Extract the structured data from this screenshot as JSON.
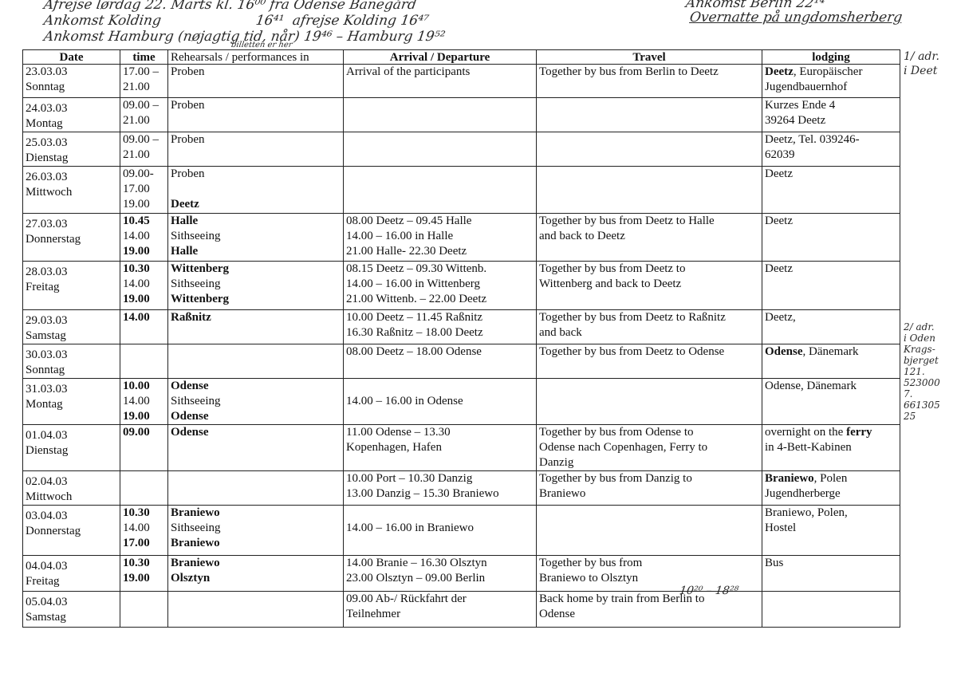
{
  "handwritten_notes": {
    "top_line1": "Afrejse lørdag 22. Marts  kl. 16⁰⁰ fra Odense Banegård",
    "top_line2": "Ankomst Kolding                      16⁴¹  afrejse Kolding 16⁴⁷",
    "top_line3": "Ankomst Hamburg (nøjagtig tid, når) 19⁴⁶  –  Hamburg 19⁵²",
    "top_line3_sub": "billetten er her",
    "top_right1": "Ankomst Berlin 22¹⁴",
    "top_right2": "Overnatte på ungdomsherberg",
    "margin1": "1/ adr.\ni Deet",
    "margin2": "2/ adr.\ni Oden\nKrags-\nbjerget\n121.\n523000\n7.\n661305\n25",
    "travel_time": "10²⁰ – 18²⁸"
  },
  "table": {
    "headers": [
      "Date",
      "time",
      "Rehearsals / performances in",
      "Arrival / Departure",
      "Travel",
      "lodging"
    ],
    "rows": [
      {
        "date": [
          "23.03.03",
          "Sonntag"
        ],
        "time": [
          [
            "17.00 –"
          ],
          [
            "21.00"
          ]
        ],
        "rehearsal": [
          [
            "Proben"
          ]
        ],
        "arrival": [
          [
            "Arrival of the participants"
          ]
        ],
        "travel": [
          [
            "Together by bus from Berlin to Deetz"
          ]
        ],
        "lodging": [
          [
            "Deetz",
            ", Europäischer"
          ],
          [
            "",
            "Jugendbauernhof"
          ]
        ]
      },
      {
        "date": [
          "24.03.03",
          "Montag"
        ],
        "time": [
          [
            "09.00 –"
          ],
          [
            "21.00"
          ]
        ],
        "rehearsal": [
          [
            "Proben"
          ]
        ],
        "arrival": [],
        "travel": [],
        "lodging": [
          [
            "",
            "Kurzes Ende 4"
          ],
          [
            "",
            "39264  Deetz"
          ]
        ]
      },
      {
        "date": [
          "25.03.03",
          "Dienstag"
        ],
        "time": [
          [
            "09.00 –"
          ],
          [
            "21.00"
          ]
        ],
        "rehearsal": [
          [
            "Proben"
          ]
        ],
        "arrival": [],
        "travel": [],
        "lodging": [
          [
            "",
            "Deetz, Tel. 039246-"
          ],
          [
            "",
            "62039"
          ]
        ]
      },
      {
        "date": [
          "26.03.03",
          "Mittwoch"
        ],
        "time": [
          [
            "09.00-"
          ],
          [
            "17.00"
          ],
          [
            "19.00"
          ]
        ],
        "rehearsal": [
          [
            "Proben"
          ],
          [
            ""
          ],
          [
            "Deetz",
            true
          ]
        ],
        "arrival": [],
        "travel": [],
        "lodging": [
          [
            "",
            "Deetz"
          ]
        ]
      },
      {
        "date": [
          "27.03.03",
          "Donnerstag"
        ],
        "time": [
          [
            "10.45",
            true
          ],
          [
            "14.00"
          ],
          [
            "19.00",
            true
          ]
        ],
        "rehearsal": [
          [
            "Halle",
            true
          ],
          [
            "Sithseeing"
          ],
          [
            "Halle",
            true
          ]
        ],
        "arrival": [
          [
            "08.00 Deetz – 09.45 Halle"
          ],
          [
            "14.00 – 16.00 in Halle"
          ],
          [
            "21.00 Halle- 22.30 Deetz"
          ]
        ],
        "travel": [
          [
            "Together by bus from Deetz to Halle"
          ],
          [
            "and back to Deetz"
          ]
        ],
        "lodging": [
          [
            "",
            "Deetz"
          ]
        ]
      },
      {
        "date": [
          "28.03.03",
          "Freitag"
        ],
        "time": [
          [
            "10.30",
            true
          ],
          [
            "14.00"
          ],
          [
            "19.00",
            true
          ]
        ],
        "rehearsal": [
          [
            "Wittenberg",
            true
          ],
          [
            "Sithseeing"
          ],
          [
            "Wittenberg",
            true
          ]
        ],
        "arrival": [
          [
            "08.15 Deetz – 09.30 Wittenb."
          ],
          [
            "14.00 – 16.00 in Wittenberg"
          ],
          [
            "21.00 Wittenb. – 22.00 Deetz"
          ]
        ],
        "travel": [
          [
            "Together by bus from Deetz to"
          ],
          [
            "Wittenberg and back to Deetz"
          ]
        ],
        "lodging": [
          [
            "",
            "Deetz"
          ]
        ]
      },
      {
        "date": [
          "29.03.03",
          "Samstag"
        ],
        "time": [
          [
            "14.00",
            true
          ]
        ],
        "rehearsal": [
          [
            "Raßnitz",
            true
          ]
        ],
        "arrival": [
          [
            "10.00 Deetz – 11.45 Raßnitz"
          ],
          [
            "16.30 Raßnitz – 18.00 Deetz"
          ]
        ],
        "travel": [
          [
            "Together by bus from Deetz to Raßnitz"
          ],
          [
            "and back"
          ]
        ],
        "lodging": [
          [
            "",
            "Deetz,"
          ]
        ]
      },
      {
        "date": [
          "30.03.03",
          "Sonntag"
        ],
        "time": [],
        "rehearsal": [],
        "arrival": [
          [
            "08.00 Deetz – 18.00 Odense"
          ]
        ],
        "travel": [
          [
            "Together by bus from Deetz to Odense"
          ]
        ],
        "lodging": [
          [
            "Odense",
            ", Dänemark"
          ]
        ]
      },
      {
        "date": [
          "31.03.03",
          "Montag"
        ],
        "time": [
          [
            "10.00",
            true
          ],
          [
            "14.00"
          ],
          [
            "19.00",
            true
          ]
        ],
        "rehearsal": [
          [
            "Odense",
            true
          ],
          [
            "Sithseeing"
          ],
          [
            "Odense",
            true
          ]
        ],
        "arrival": [
          [
            ""
          ],
          [
            "14.00 – 16.00 in Odense"
          ]
        ],
        "travel": [],
        "lodging": [
          [
            "",
            "Odense, Dänemark"
          ]
        ]
      },
      {
        "date": [
          "01.04.03",
          "Dienstag"
        ],
        "time": [
          [
            "09.00",
            true
          ]
        ],
        "rehearsal": [
          [
            "Odense",
            true
          ]
        ],
        "arrival": [
          [
            "11.00 Odense – 13.30"
          ],
          [
            "Kopenhagen, Hafen"
          ]
        ],
        "travel": [
          [
            "Together by bus from Odense to"
          ],
          [
            "Odense nach Copenhagen, Ferry to"
          ],
          [
            "Danzig"
          ]
        ],
        "lodging": [
          [
            "",
            "overnight on the ",
            "ferry"
          ],
          [
            "",
            "in 4-Bett-Kabinen"
          ]
        ]
      },
      {
        "date": [
          "02.04.03",
          "Mittwoch"
        ],
        "time": [],
        "rehearsal": [],
        "arrival": [
          [
            "10.00 Port – 10.30 Danzig"
          ],
          [
            "13.00 Danzig – 15.30 Braniewo"
          ]
        ],
        "travel": [
          [
            "Together by bus from Danzig to"
          ],
          [
            "Braniewo"
          ]
        ],
        "lodging": [
          [
            "Braniewo",
            ", Polen"
          ],
          [
            "",
            "Jugendherberge"
          ]
        ]
      },
      {
        "date": [
          "03.04.03",
          "Donnerstag"
        ],
        "time": [
          [
            "10.30",
            true
          ],
          [
            "14.00"
          ],
          [
            "17.00",
            true
          ]
        ],
        "rehearsal": [
          [
            "Braniewo",
            true
          ],
          [
            "Sithseeing"
          ],
          [
            "Braniewo",
            true
          ]
        ],
        "arrival": [
          [
            ""
          ],
          [
            "14.00 – 16.00 in Braniewo"
          ]
        ],
        "travel": [],
        "lodging": [
          [
            "",
            "Braniewo, Polen,"
          ],
          [
            "",
            "Hostel"
          ]
        ]
      },
      {
        "date": [
          "04.04.03",
          "Freitag"
        ],
        "time": [
          [
            "10.30",
            true
          ],
          [
            "19.00",
            true
          ]
        ],
        "rehearsal": [
          [
            "Braniewo",
            true
          ],
          [
            "Olsztyn",
            true
          ]
        ],
        "arrival": [
          [
            "14.00 Branie – 16.30 Olsztyn"
          ],
          [
            "23.00 Olsztyn – 09.00 Berlin"
          ]
        ],
        "travel": [
          [
            "Together by bus from"
          ],
          [
            "Braniewo to Olsztyn"
          ]
        ],
        "lodging": [
          [
            "",
            "Bus"
          ]
        ]
      },
      {
        "date": [
          "05.04.03",
          "Samstag"
        ],
        "time": [],
        "rehearsal": [],
        "arrival": [
          [
            "09.00 Ab-/ Rückfahrt der"
          ],
          [
            "Teilnehmer"
          ]
        ],
        "travel": [
          [
            "Back home by train from Berlin to"
          ],
          [
            "Odense"
          ]
        ],
        "lodging": []
      }
    ]
  }
}
